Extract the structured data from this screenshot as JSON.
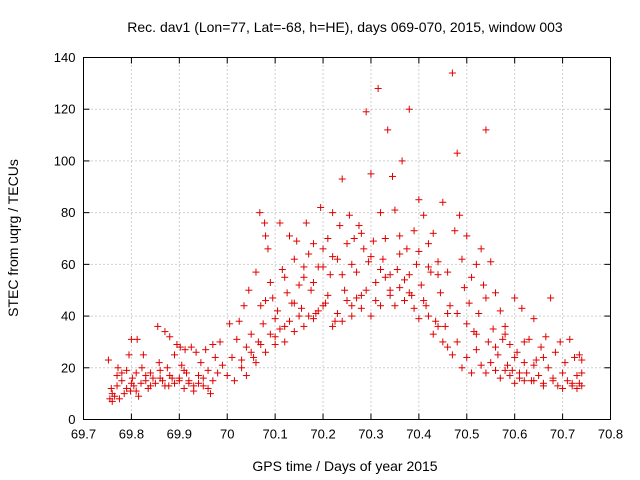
{
  "chart_data": {
    "type": "scatter",
    "title": "Rec. dav1 (Lon=77, Lat=-68, h=HE), days 069-070, 2015, window 003",
    "xlabel": "GPS time / Days of year 2015",
    "ylabel": "STEC from uqrg / TECUs",
    "xlim": [
      69.7,
      70.8
    ],
    "ylim": [
      0,
      140
    ],
    "xticks": [
      "69.7",
      "69.8",
      "69.9",
      "70",
      "70.1",
      "70.2",
      "70.3",
      "70.4",
      "70.5",
      "70.6",
      "70.7",
      "70.8"
    ],
    "yticks": [
      "0",
      "20",
      "40",
      "60",
      "80",
      "100",
      "120",
      "140"
    ],
    "grid": true,
    "marker": "+",
    "color": "#e00000",
    "points": [
      [
        69.752,
        23
      ],
      [
        69.755,
        8
      ],
      [
        69.758,
        12
      ],
      [
        69.76,
        7
      ],
      [
        69.765,
        9
      ],
      [
        69.77,
        17
      ],
      [
        69.772,
        20
      ],
      [
        69.775,
        8
      ],
      [
        69.78,
        15
      ],
      [
        69.785,
        10
      ],
      [
        69.79,
        19
      ],
      [
        69.795,
        25
      ],
      [
        69.798,
        11
      ],
      [
        69.8,
        31
      ],
      [
        69.802,
        16
      ],
      [
        69.805,
        13
      ],
      [
        69.81,
        18
      ],
      [
        69.812,
        31
      ],
      [
        69.815,
        9
      ],
      [
        69.82,
        14
      ],
      [
        69.822,
        20
      ],
      [
        69.825,
        25
      ],
      [
        69.83,
        15
      ],
      [
        69.835,
        12
      ],
      [
        69.84,
        18
      ],
      [
        69.845,
        16
      ],
      [
        69.85,
        14
      ],
      [
        69.855,
        36
      ],
      [
        69.858,
        22
      ],
      [
        69.86,
        19
      ],
      [
        69.865,
        15
      ],
      [
        69.87,
        34
      ],
      [
        69.875,
        20
      ],
      [
        69.878,
        13
      ],
      [
        69.88,
        32
      ],
      [
        69.885,
        16
      ],
      [
        69.89,
        25
      ],
      [
        69.895,
        29
      ],
      [
        69.9,
        15
      ],
      [
        69.902,
        28
      ],
      [
        69.905,
        21
      ],
      [
        69.91,
        12
      ],
      [
        69.912,
        27
      ],
      [
        69.915,
        18
      ],
      [
        69.92,
        14
      ],
      [
        69.925,
        28
      ],
      [
        69.93,
        11
      ],
      [
        69.935,
        26
      ],
      [
        69.94,
        17
      ],
      [
        69.945,
        22
      ],
      [
        69.95,
        13
      ],
      [
        69.955,
        27
      ],
      [
        69.96,
        19
      ],
      [
        69.965,
        10
      ],
      [
        69.97,
        29
      ],
      [
        69.975,
        24
      ],
      [
        69.98,
        18
      ],
      [
        69.985,
        30
      ],
      [
        69.99,
        21
      ],
      [
        70.0,
        17
      ],
      [
        70.005,
        37
      ],
      [
        70.01,
        24
      ],
      [
        70.015,
        15
      ],
      [
        70.02,
        31
      ],
      [
        70.025,
        38
      ],
      [
        70.03,
        20
      ],
      [
        70.035,
        44
      ],
      [
        70.04,
        28
      ],
      [
        70.045,
        50
      ],
      [
        70.05,
        33
      ],
      [
        70.055,
        24
      ],
      [
        70.06,
        57
      ],
      [
        70.065,
        30
      ],
      [
        70.068,
        80
      ],
      [
        70.07,
        44
      ],
      [
        70.075,
        37
      ],
      [
        70.078,
        76
      ],
      [
        70.08,
        71
      ],
      [
        70.085,
        66
      ],
      [
        70.09,
        53
      ],
      [
        70.095,
        47
      ],
      [
        70.1,
        29
      ],
      [
        70.105,
        42
      ],
      [
        70.11,
        76
      ],
      [
        70.115,
        58
      ],
      [
        70.12,
        36
      ],
      [
        70.125,
        49
      ],
      [
        70.13,
        71
      ],
      [
        70.135,
        45
      ],
      [
        70.14,
        62
      ],
      [
        70.145,
        69
      ],
      [
        70.15,
        52
      ],
      [
        70.155,
        43
      ],
      [
        70.16,
        59
      ],
      [
        70.165,
        76
      ],
      [
        70.17,
        64
      ],
      [
        70.175,
        50
      ],
      [
        70.18,
        68
      ],
      [
        70.185,
        41
      ],
      [
        70.19,
        59
      ],
      [
        70.195,
        82
      ],
      [
        70.2,
        66
      ],
      [
        70.205,
        45
      ],
      [
        70.21,
        70
      ],
      [
        70.215,
        56
      ],
      [
        70.22,
        80
      ],
      [
        70.225,
        38
      ],
      [
        70.23,
        62
      ],
      [
        70.235,
        75
      ],
      [
        70.24,
        93
      ],
      [
        70.245,
        50
      ],
      [
        70.25,
        68
      ],
      [
        70.255,
        79
      ],
      [
        70.26,
        44
      ],
      [
        70.265,
        70
      ],
      [
        70.27,
        57
      ],
      [
        70.275,
        75
      ],
      [
        70.28,
        48
      ],
      [
        70.285,
        66
      ],
      [
        70.29,
        119
      ],
      [
        70.295,
        61
      ],
      [
        70.3,
        95
      ],
      [
        70.305,
        69
      ],
      [
        70.31,
        53
      ],
      [
        70.315,
        128
      ],
      [
        70.32,
        80
      ],
      [
        70.325,
        62
      ],
      [
        70.33,
        70
      ],
      [
        70.335,
        112
      ],
      [
        70.34,
        50
      ],
      [
        70.345,
        94
      ],
      [
        70.35,
        81
      ],
      [
        70.355,
        58
      ],
      [
        70.36,
        71
      ],
      [
        70.365,
        100
      ],
      [
        70.37,
        54
      ],
      [
        70.375,
        66
      ],
      [
        70.38,
        120
      ],
      [
        70.385,
        48
      ],
      [
        70.39,
        73
      ],
      [
        70.395,
        60
      ],
      [
        70.4,
        85
      ],
      [
        70.405,
        52
      ],
      [
        70.41,
        79
      ],
      [
        70.415,
        44
      ],
      [
        70.42,
        68
      ],
      [
        70.425,
        57
      ],
      [
        70.43,
        72
      ],
      [
        70.435,
        38
      ],
      [
        70.44,
        61
      ],
      [
        70.445,
        49
      ],
      [
        70.45,
        84
      ],
      [
        70.455,
        36
      ],
      [
        70.46,
        57
      ],
      [
        70.465,
        44
      ],
      [
        70.47,
        134
      ],
      [
        70.475,
        73
      ],
      [
        70.48,
        103
      ],
      [
        70.485,
        79
      ],
      [
        70.49,
        62
      ],
      [
        70.495,
        51
      ],
      [
        70.5,
        71
      ],
      [
        70.505,
        45
      ],
      [
        70.51,
        55
      ],
      [
        70.515,
        34
      ],
      [
        70.52,
        60
      ],
      [
        70.525,
        41
      ],
      [
        70.53,
        66
      ],
      [
        70.535,
        52
      ],
      [
        70.54,
        112
      ],
      [
        70.545,
        30
      ],
      [
        70.55,
        61
      ],
      [
        70.555,
        35
      ],
      [
        70.56,
        49
      ],
      [
        70.565,
        25
      ],
      [
        70.57,
        42
      ],
      [
        70.575,
        31
      ],
      [
        70.58,
        36
      ],
      [
        70.585,
        21
      ],
      [
        70.59,
        29
      ],
      [
        70.595,
        19
      ],
      [
        70.6,
        47
      ],
      [
        70.605,
        26
      ],
      [
        70.61,
        16
      ],
      [
        70.615,
        43
      ],
      [
        70.62,
        22
      ],
      [
        70.625,
        18
      ],
      [
        70.63,
        31
      ],
      [
        70.635,
        15
      ],
      [
        70.64,
        39
      ],
      [
        70.645,
        23
      ],
      [
        70.65,
        17
      ],
      [
        70.655,
        28
      ],
      [
        70.66,
        14
      ],
      [
        70.665,
        32
      ],
      [
        70.67,
        20
      ],
      [
        70.675,
        47
      ],
      [
        70.68,
        16
      ],
      [
        70.685,
        26
      ],
      [
        70.69,
        13
      ],
      [
        70.695,
        30
      ],
      [
        70.7,
        18
      ],
      [
        70.705,
        22
      ],
      [
        70.71,
        15
      ],
      [
        70.715,
        31
      ],
      [
        70.72,
        13
      ],
      [
        70.725,
        24
      ],
      [
        70.73,
        17
      ],
      [
        70.735,
        25
      ],
      [
        69.76,
        10
      ],
      [
        69.77,
        13
      ],
      [
        69.78,
        18
      ],
      [
        69.79,
        12
      ],
      [
        69.8,
        14
      ],
      [
        69.81,
        11
      ],
      [
        69.83,
        17
      ],
      [
        69.84,
        13
      ],
      [
        69.86,
        16
      ],
      [
        69.87,
        13
      ],
      [
        69.88,
        17
      ],
      [
        69.89,
        14
      ],
      [
        69.9,
        16
      ],
      [
        69.91,
        19
      ],
      [
        69.92,
        15
      ],
      [
        69.93,
        13
      ],
      [
        69.94,
        14
      ],
      [
        69.95,
        16
      ],
      [
        69.96,
        12
      ],
      [
        69.97,
        15
      ],
      [
        70.03,
        23
      ],
      [
        70.04,
        17
      ],
      [
        70.05,
        26
      ],
      [
        70.06,
        22
      ],
      [
        70.07,
        29
      ],
      [
        70.08,
        26
      ],
      [
        70.09,
        33
      ],
      [
        70.1,
        32
      ],
      [
        70.11,
        35
      ],
      [
        70.12,
        30
      ],
      [
        70.13,
        38
      ],
      [
        70.14,
        34
      ],
      [
        70.15,
        40
      ],
      [
        70.16,
        36
      ],
      [
        70.17,
        40
      ],
      [
        70.18,
        39
      ],
      [
        70.19,
        42
      ],
      [
        70.2,
        44
      ],
      [
        70.21,
        48
      ],
      [
        70.22,
        36
      ],
      [
        70.23,
        41
      ],
      [
        70.24,
        38
      ],
      [
        70.25,
        46
      ],
      [
        70.26,
        40
      ],
      [
        70.27,
        47
      ],
      [
        70.28,
        43
      ],
      [
        70.29,
        50
      ],
      [
        70.3,
        40
      ],
      [
        70.31,
        46
      ],
      [
        70.32,
        44
      ],
      [
        70.33,
        55
      ],
      [
        70.34,
        48
      ],
      [
        70.35,
        44
      ],
      [
        70.36,
        51
      ],
      [
        70.37,
        46
      ],
      [
        70.38,
        49
      ],
      [
        70.39,
        43
      ],
      [
        70.4,
        39
      ],
      [
        70.41,
        46
      ],
      [
        70.42,
        40
      ],
      [
        70.43,
        33
      ],
      [
        70.44,
        36
      ],
      [
        70.45,
        30
      ],
      [
        70.46,
        28
      ],
      [
        70.47,
        25
      ],
      [
        70.48,
        30
      ],
      [
        70.49,
        20
      ],
      [
        70.5,
        24
      ],
      [
        70.51,
        18
      ],
      [
        70.52,
        27
      ],
      [
        70.53,
        21
      ],
      [
        70.54,
        18
      ],
      [
        70.55,
        22
      ],
      [
        70.56,
        19
      ],
      [
        70.57,
        16
      ],
      [
        70.58,
        19
      ],
      [
        70.59,
        17
      ],
      [
        70.6,
        14
      ],
      [
        70.61,
        18
      ],
      [
        70.62,
        15
      ],
      [
        70.64,
        15
      ],
      [
        70.66,
        13
      ],
      [
        70.68,
        15
      ],
      [
        70.7,
        12
      ],
      [
        70.72,
        14
      ],
      [
        70.73,
        12
      ],
      [
        70.735,
        14
      ],
      [
        70.74,
        18
      ],
      [
        70.74,
        23
      ],
      [
        70.74,
        13
      ],
      [
        70.08,
        46
      ],
      [
        70.1,
        39
      ],
      [
        70.12,
        55
      ],
      [
        70.14,
        45
      ],
      [
        70.16,
        55
      ],
      [
        70.18,
        53
      ],
      [
        70.2,
        59
      ],
      [
        70.22,
        63
      ],
      [
        70.24,
        56
      ],
      [
        70.26,
        60
      ],
      [
        70.28,
        72
      ],
      [
        70.3,
        63
      ],
      [
        70.32,
        58
      ],
      [
        70.34,
        56
      ],
      [
        70.36,
        64
      ],
      [
        70.38,
        56
      ],
      [
        70.4,
        65
      ],
      [
        70.42,
        59
      ],
      [
        70.44,
        56
      ],
      [
        70.46,
        41
      ],
      [
        70.48,
        41
      ],
      [
        70.5,
        37
      ],
      [
        70.52,
        33
      ],
      [
        70.54,
        47
      ],
      [
        70.56,
        28
      ],
      [
        70.58,
        33
      ],
      [
        70.6,
        24
      ],
      [
        70.62,
        30
      ],
      [
        70.64,
        21
      ],
      [
        70.66,
        24
      ]
    ]
  }
}
